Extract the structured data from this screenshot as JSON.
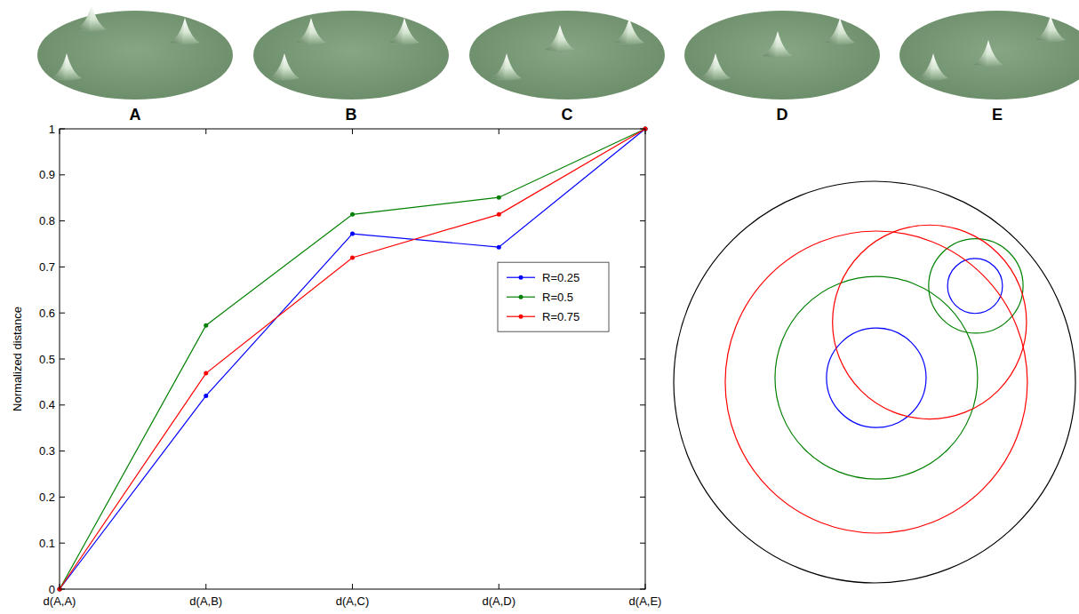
{
  "chart_data": {
    "type": "line",
    "y_label": "Normalized distance",
    "categories": [
      "d(A,A)",
      "d(A,B)",
      "d(A,C)",
      "d(A,D)",
      "d(A,E)"
    ],
    "series": [
      {
        "name": "R=0.25",
        "color": "#0000ff",
        "values": [
          0,
          0.42,
          0.772,
          0.743,
          1
        ]
      },
      {
        "name": "R=0.5",
        "color": "#008000",
        "values": [
          0,
          0.573,
          0.814,
          0.851,
          1
        ]
      },
      {
        "name": "R=0.75",
        "color": "#ff0000",
        "values": [
          0,
          0.469,
          0.72,
          0.814,
          1
        ]
      }
    ],
    "ylim": [
      0,
      1
    ],
    "yticks": [
      0,
      0.1,
      0.2,
      0.3,
      0.4,
      0.5,
      0.6,
      0.7,
      0.8,
      0.9,
      1
    ],
    "grid": false,
    "legend": "right",
    "marker": "dot"
  },
  "surfaces": {
    "labels": [
      "A",
      "B",
      "C",
      "D",
      "E"
    ]
  }
}
